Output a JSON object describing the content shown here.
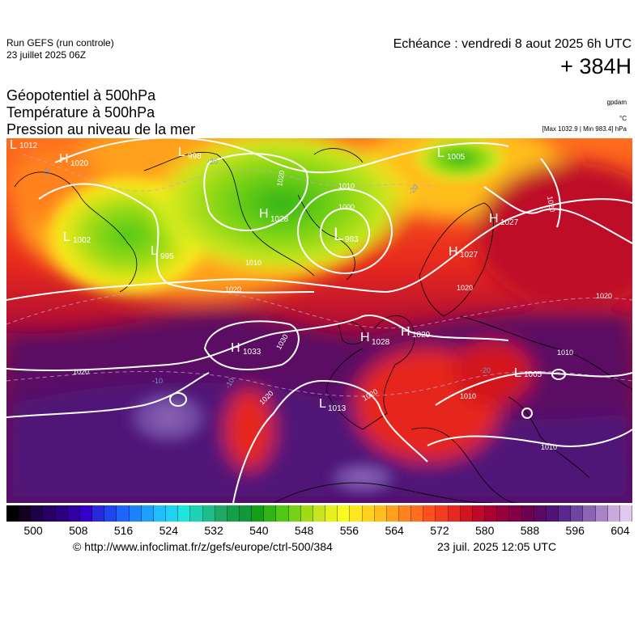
{
  "header": {
    "run_title": "Run GEFS (run controle)",
    "run_date": "23 juillet 2025 06Z",
    "valid_time": "Echéance : vendredi 8 aout 2025 6h UTC",
    "lead_time": "+ 384H"
  },
  "parameters": [
    "Géopotentiel à 500hPa",
    "Température à 500hPa",
    "Pression au niveau de la mer"
  ],
  "units": {
    "geopotential": "gpdam",
    "temperature": "°C",
    "pressure_extremes": "[Max 1032.9 | Min 983.4] hPa"
  },
  "map": {
    "pressure_centers": [
      {
        "type": "L",
        "value": "1012"
      },
      {
        "type": "H",
        "value": "1020"
      },
      {
        "type": "L",
        "value": "1002"
      },
      {
        "type": "L",
        "value": "995"
      },
      {
        "type": "L",
        "value": "998"
      },
      {
        "type": "H",
        "value": "1028"
      },
      {
        "type": "L",
        "value": "983"
      },
      {
        "type": "L",
        "value": "1005"
      },
      {
        "type": "H",
        "value": "1027"
      },
      {
        "type": "H",
        "value": "1027"
      },
      {
        "type": "H",
        "value": "1033"
      },
      {
        "type": "H",
        "value": "1028"
      },
      {
        "type": "H",
        "value": "1029"
      },
      {
        "type": "L",
        "value": "1013"
      },
      {
        "type": "L",
        "value": "1005"
      }
    ],
    "isobar_labels": [
      "1010",
      "1020",
      "1000",
      "1010",
      "1020",
      "1020",
      "1030",
      "1020",
      "1020",
      "1020",
      "1010",
      "1010",
      "1020",
      "1010",
      "1020"
    ],
    "temperature_labels": [
      "-10",
      "-20",
      "-10",
      "-10",
      "-20",
      "-20"
    ]
  },
  "colorbar": {
    "labels": [
      "500",
      "508",
      "516",
      "524",
      "532",
      "540",
      "548",
      "556",
      "564",
      "572",
      "580",
      "588",
      "596",
      "604"
    ],
    "colors": [
      "#000000",
      "#14001e",
      "#1e0046",
      "#280064",
      "#2d0082",
      "#3200a0",
      "#3200c8",
      "#2828dc",
      "#1e46f0",
      "#1e64ff",
      "#1e82ff",
      "#1ea0ff",
      "#1ebeff",
      "#1ed2f0",
      "#1ee6dc",
      "#1ed2b4",
      "#1ebe8c",
      "#1eaa64",
      "#14a046",
      "#14963c",
      "#14a014",
      "#32b414",
      "#50c814",
      "#78d214",
      "#a0dc14",
      "#c8e61e",
      "#e6f01e",
      "#fafa1e",
      "#ffe61e",
      "#ffd21e",
      "#ffbe1e",
      "#ffa01e",
      "#ff821e",
      "#ff6e1e",
      "#ff501e",
      "#f53c1e",
      "#e6281e",
      "#d2141e",
      "#be0a28",
      "#aa0032",
      "#96003c",
      "#820046",
      "#6e0050",
      "#5a0a64",
      "#501478",
      "#5a288c",
      "#6e46a0",
      "#8c64b4",
      "#aa82c8",
      "#c8aadc",
      "#e1c8f0"
    ]
  },
  "footer": {
    "url": "© http://www.infoclimat.fr/z/gefs/europe/ctrl-500/384",
    "generated": "23 juil. 2025 12:05 UTC"
  }
}
